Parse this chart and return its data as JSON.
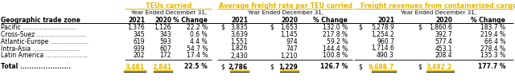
{
  "title_teus": "TEUs carried",
  "title_freight_rate": "Average freight rate per TEU carried",
  "title_freight_rev": "Freight revenues from containerized cargo",
  "subtitle": "Year Ended December 31,",
  "col_header": "Geographic trade zone",
  "col_years": [
    "2021",
    "2020",
    "% Change"
  ],
  "rows": [
    {
      "name": "Pacific",
      "teus_2021": "1,376",
      "teus_2020": "1,126",
      "teus_pct": "22.2 %",
      "rate_dollar_2021": "S",
      "rate_2021": "3,835",
      "rate_dollar_2020": "S",
      "rate_2020": "1,653",
      "rate_pct": "132.0 %",
      "rev_dollar_2021": "S",
      "rev_2021": "5,278.9",
      "rev_dollar_2020": "S",
      "rev_2020": "1,860.6",
      "rev_pct": "183.7 %"
    },
    {
      "name": "Cross-Suez",
      "teus_2021": "345",
      "teus_2020": "343",
      "teus_pct": "0.6 %",
      "rate_dollar_2021": "",
      "rate_2021": "3,639",
      "rate_dollar_2020": "",
      "rate_2020": "1,145",
      "rate_pct": "217.8 %",
      "rev_dollar_2021": "",
      "rev_2021": "1,254.2",
      "rev_dollar_2020": "",
      "rev_2020": "392.7",
      "rev_pct": "219.4 %"
    },
    {
      "name": "Atlantic-Europe",
      "teus_2021": "619",
      "teus_2020": "593",
      "teus_pct": "4.4 %",
      "rate_dollar_2021": "",
      "rate_2021": "1,551",
      "rate_dollar_2020": "",
      "rate_2020": "974",
      "rate_pct": "59.2 %",
      "rev_dollar_2021": "",
      "rev_2021": "960.7",
      "rev_dollar_2020": "",
      "rev_2020": "577.4",
      "rev_pct": "66.4 %"
    },
    {
      "name": "Intra-Asia",
      "teus_2021": "939",
      "teus_2020": "607",
      "teus_pct": "54.7 %",
      "rate_dollar_2021": "",
      "rate_2021": "1,826",
      "rate_dollar_2020": "",
      "rate_2020": "747",
      "rate_pct": "144.4 %",
      "rev_dollar_2021": "",
      "rev_2021": "1,714.6",
      "rev_dollar_2020": "",
      "rev_2020": "453.1",
      "rev_pct": "278.4 %"
    },
    {
      "name": "Latin America",
      "teus_2021": "202",
      "teus_2020": "172",
      "teus_pct": "17.4 %",
      "rate_dollar_2021": "",
      "rate_2021": "2,430",
      "rate_dollar_2020": "",
      "rate_2020": "1,210",
      "rate_pct": "100.8 %",
      "rev_dollar_2021": "",
      "rev_2021": "490.3",
      "rev_dollar_2020": "",
      "rev_2020": "208.4",
      "rev_pct": "135.3 %"
    },
    {
      "name": "Total",
      "is_total": true,
      "teus_2021": "3,481",
      "teus_2020": "2,841",
      "teus_pct": "22.5 %",
      "rate_dollar_2021": "S",
      "rate_2021": "2,786",
      "rate_dollar_2020": "S",
      "rate_2020": "1,229",
      "rate_pct": "126.7 %",
      "rev_dollar_2021": "S",
      "rev_2021": "9,698.7",
      "rev_dollar_2020": "S",
      "rev_2020": "3,492.2",
      "rev_pct": "177.7 %"
    }
  ],
  "yellow": "#E6B800",
  "black": "#000000",
  "background": "#FFFFFF",
  "font_size": 5.5,
  "bold_font_size": 5.5,
  "title_font_size": 5.8
}
